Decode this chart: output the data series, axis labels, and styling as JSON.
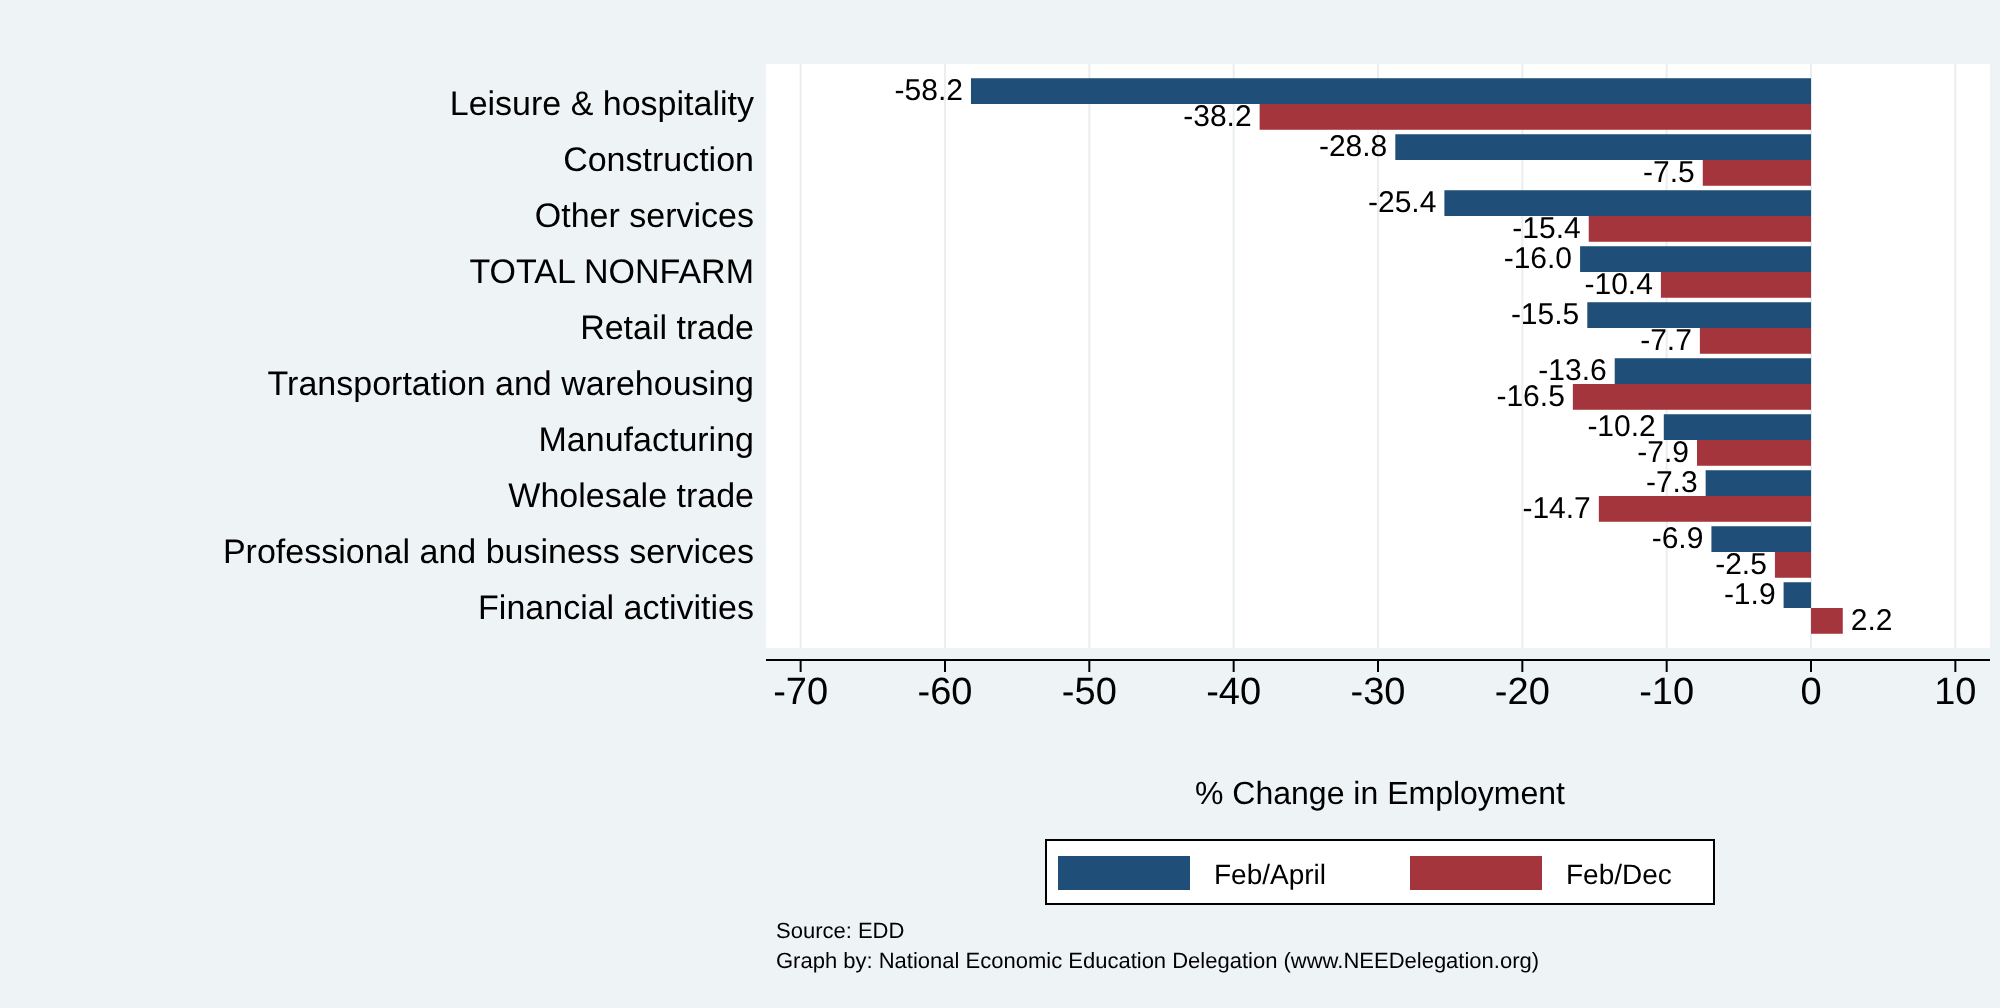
{
  "chart_data": {
    "type": "bar",
    "orientation": "horizontal",
    "xlabel": "% Change in Employment",
    "categories": [
      "Leisure & hospitality",
      "Construction",
      "Other services",
      "TOTAL NONFARM",
      "Retail trade",
      "Transportation and warehousing",
      "Manufacturing",
      "Wholesale trade",
      "Professional and business services",
      "Financial activities"
    ],
    "series": [
      {
        "name": "Feb/April",
        "color": "#1f4e79",
        "values": [
          -58.2,
          -28.8,
          -25.4,
          -16.0,
          -15.5,
          -13.6,
          -10.2,
          -7.3,
          -6.9,
          -1.9
        ],
        "value_labels": [
          "-58.2",
          "-28.8",
          "-25.4",
          "-16.0",
          "-15.5",
          "-13.6",
          "-10.2",
          "-7.3",
          "-6.9",
          "-1.9"
        ]
      },
      {
        "name": "Feb/Dec",
        "color": "#a5353d",
        "values": [
          -38.2,
          -7.5,
          -15.4,
          -10.4,
          -7.7,
          -16.5,
          -7.9,
          -14.7,
          -2.5,
          2.2
        ],
        "value_labels": [
          "-38.2",
          "-7.5",
          "-15.4",
          "-10.4",
          "-7.7",
          "-16.5",
          "-7.9",
          "-14.7",
          "-2.5",
          "2.2"
        ]
      }
    ],
    "xlim": [
      -72.4,
      12.4
    ],
    "xticks": [
      -70,
      -60,
      -50,
      -40,
      -30,
      -20,
      -10,
      0,
      10
    ],
    "grid": "x",
    "legend": "bottom",
    "annotations": [
      "Source: EDD",
      "Graph by: National Economic Education Delegation (www.NEEDelegation.org)"
    ]
  }
}
